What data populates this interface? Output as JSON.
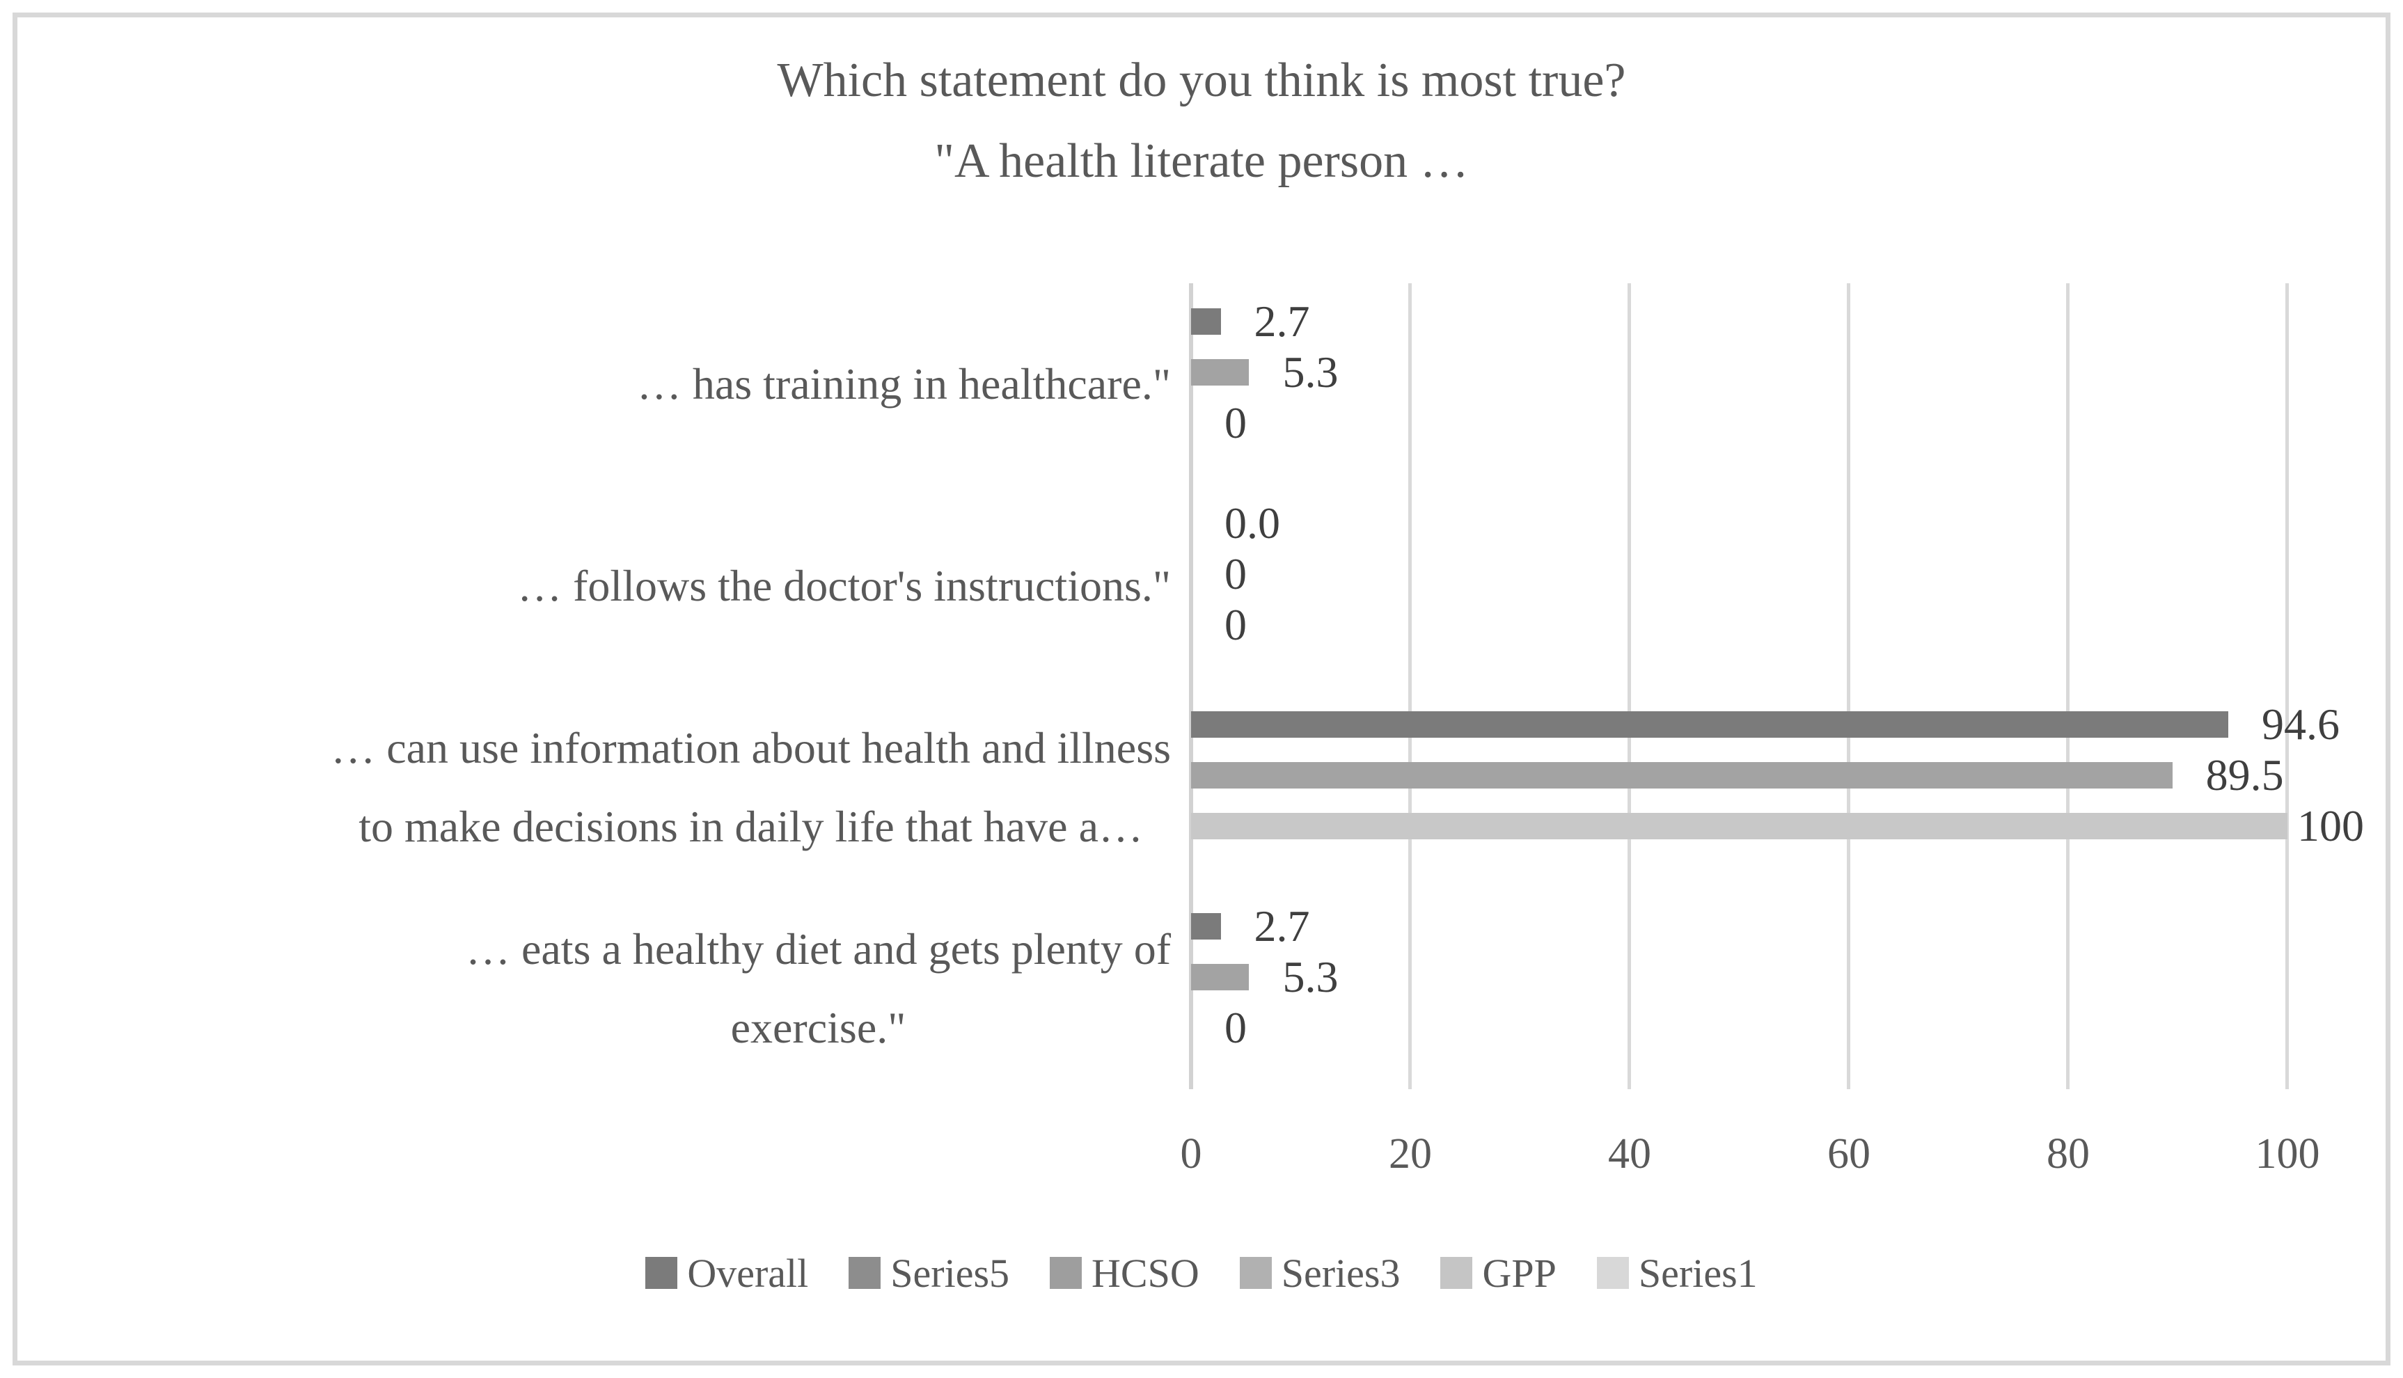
{
  "title": {
    "line1": "Which statement do you think is most true?",
    "line2": "\"A health literate person …"
  },
  "chart_data": {
    "type": "bar",
    "orientation": "horizontal",
    "title": "Which statement do you think is most true? \"A health literate person …",
    "xlabel": "",
    "ylabel": "",
    "xlim": [
      0,
      100
    ],
    "x_ticks": [
      "0",
      "20",
      "40",
      "60",
      "80",
      "100"
    ],
    "x_tick_values": [
      0,
      20,
      40,
      60,
      80,
      100
    ],
    "grid": true,
    "categories": [
      {
        "lines": [
          "… has training in healthcare.\""
        ]
      },
      {
        "lines": [
          "… follows the doctor's instructions.\""
        ]
      },
      {
        "lines": [
          "… can use information about health and illness",
          "to make decisions in daily life that have a…"
        ]
      },
      {
        "lines": [
          "… eats a healthy diet and gets plenty of",
          "exercise.\""
        ]
      }
    ],
    "series": [
      {
        "name": "Overall",
        "color": "#7b7b7b",
        "values": [
          2.7,
          0.0,
          94.6,
          2.7
        ],
        "labels": [
          "2.7",
          "0.0",
          "94.6",
          "2.7"
        ]
      },
      {
        "name": "HCSO",
        "color": "#a3a3a3",
        "values": [
          5.3,
          0,
          89.5,
          5.3
        ],
        "labels": [
          "5.3",
          "0",
          "89.5",
          "5.3"
        ]
      },
      {
        "name": "GPP",
        "color": "#c8c8c8",
        "values": [
          0,
          0,
          100,
          0
        ],
        "labels": [
          "0",
          "0",
          "100",
          "0"
        ]
      }
    ],
    "legend": {
      "position": "bottom",
      "entries": [
        {
          "label": "Overall",
          "color": "#7b7b7b"
        },
        {
          "label": "Series5",
          "color": "#8d8d8d"
        },
        {
          "label": "HCSO",
          "color": "#9e9e9e"
        },
        {
          "label": "Series3",
          "color": "#b1b1b1"
        },
        {
          "label": "GPP",
          "color": "#c5c5c5"
        },
        {
          "label": "Series1",
          "color": "#d8d8d8"
        }
      ]
    },
    "colors": {
      "gridline": "#d9d9d9",
      "axis_line": "#d2d2d2",
      "frame_border": "#d8d8d8",
      "title_text": "#595959",
      "axis_text": "#595959",
      "data_label_text": "#3f3f3f"
    }
  }
}
